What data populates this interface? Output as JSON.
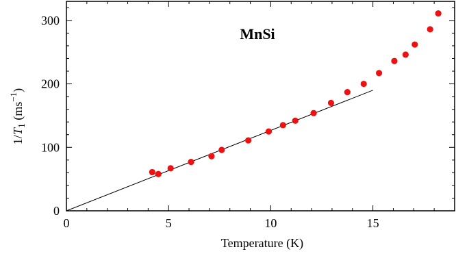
{
  "chart_data": {
    "type": "scatter",
    "title": "MnSi",
    "xlabel": "Temperature (K)",
    "ylabel": {
      "prefix": "1/",
      "var": "T",
      "sub": "1",
      "unit_open": " (ms",
      "sup": "−1",
      "unit_close": ")"
    },
    "xlim": [
      0,
      19
    ],
    "ylim": [
      0,
      330
    ],
    "x_ticks": [
      0,
      5,
      10,
      15
    ],
    "y_ticks": [
      0,
      100,
      200,
      300
    ],
    "x_tick_labels": [
      "0",
      "5",
      "10",
      "15"
    ],
    "y_tick_labels": [
      "0",
      "100",
      "200",
      "300"
    ],
    "grid": false,
    "series": [
      {
        "marker": "circle",
        "color": "#ee1111",
        "points": [
          [
            4.2,
            61
          ],
          [
            4.5,
            58
          ],
          [
            5.1,
            67
          ],
          [
            6.1,
            77
          ],
          [
            7.1,
            86
          ],
          [
            7.6,
            96
          ],
          [
            8.9,
            111
          ],
          [
            9.9,
            125
          ],
          [
            10.6,
            135
          ],
          [
            11.2,
            142
          ],
          [
            12.1,
            154
          ],
          [
            12.95,
            170
          ],
          [
            13.75,
            187
          ],
          [
            14.55,
            200
          ],
          [
            15.3,
            217
          ],
          [
            16.05,
            236
          ],
          [
            16.6,
            246
          ],
          [
            17.05,
            262
          ],
          [
            17.8,
            286
          ],
          [
            18.2,
            311
          ]
        ]
      }
    ],
    "fit_line": {
      "color": "#000000",
      "points": [
        [
          0,
          0
        ],
        [
          15,
          190
        ]
      ]
    }
  }
}
